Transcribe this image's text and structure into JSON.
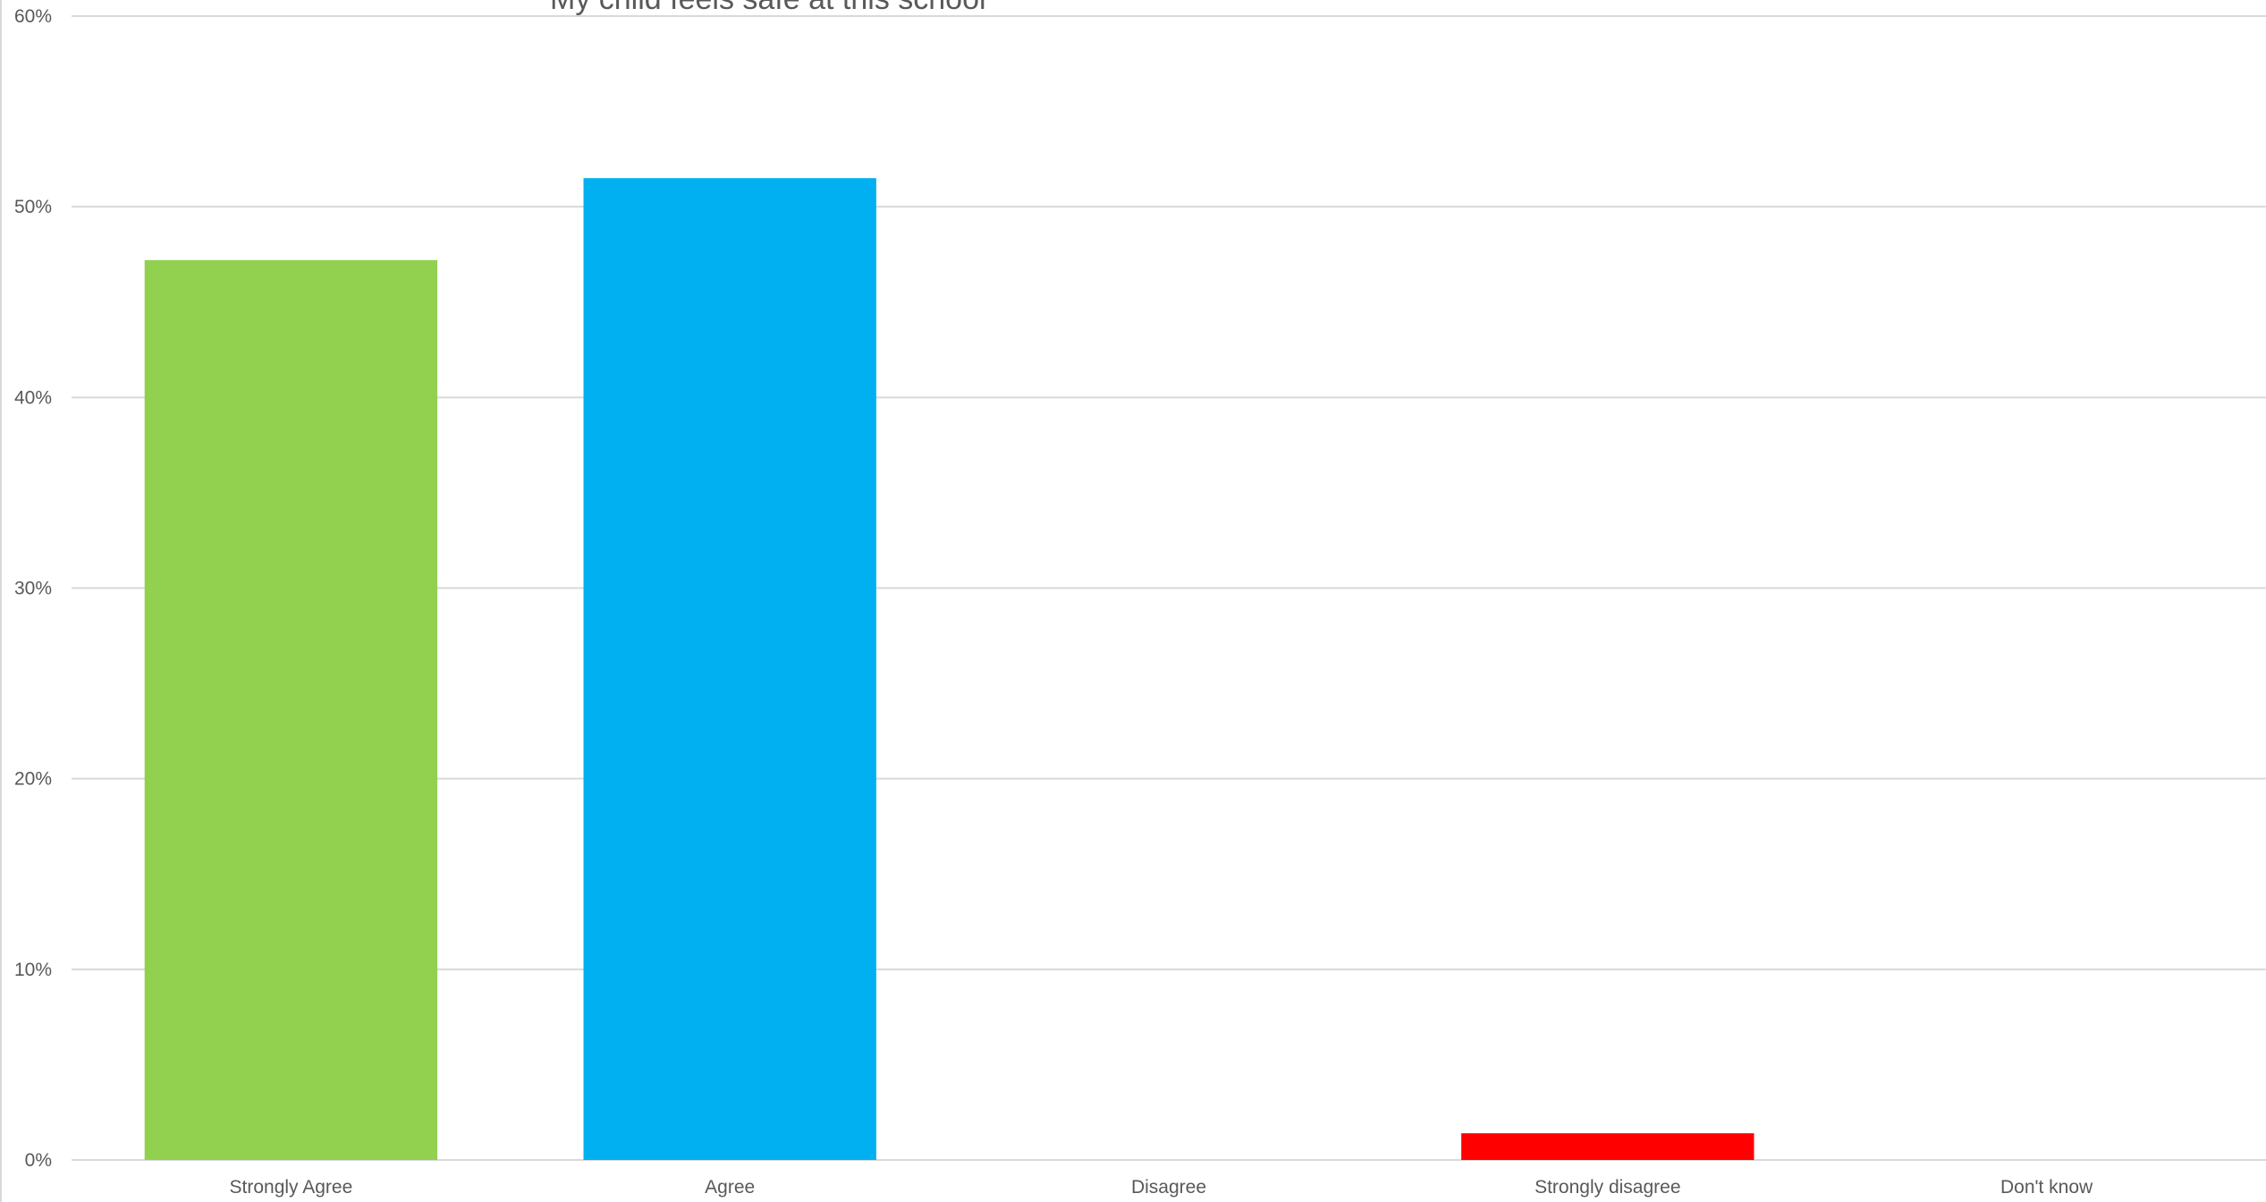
{
  "chart_data": {
    "type": "bar",
    "title": "My child feels safe at this school",
    "xlabel": "",
    "ylabel": "",
    "categories": [
      "Strongly Agree",
      "Agree",
      "Disagree",
      "Strongly disagree",
      "Don't know"
    ],
    "values": [
      47.2,
      51.5,
      0,
      1.4,
      0
    ],
    "value_unit": "%",
    "ylim": [
      0,
      60
    ],
    "yticks": [
      0,
      10,
      20,
      30,
      40,
      50,
      60
    ],
    "ytick_labels": [
      "0%",
      "10%",
      "20%",
      "30%",
      "40%",
      "50%",
      "60%"
    ],
    "grid": true,
    "legend": "none",
    "colors": [
      "#92d050",
      "#00b0f0",
      "#d9d9d9",
      "#ff0000",
      "#d9d9d9"
    ]
  }
}
